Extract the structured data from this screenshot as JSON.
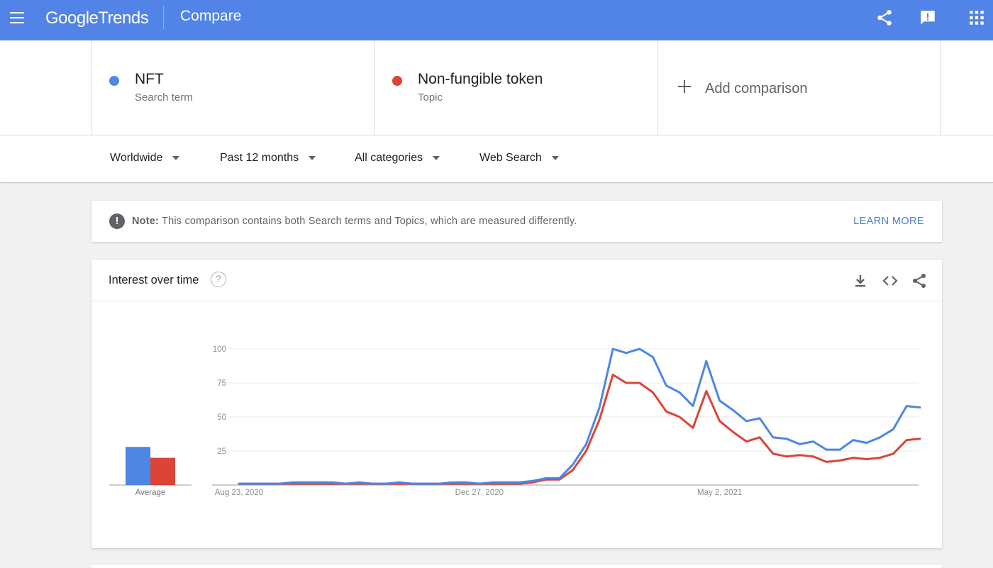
{
  "header": {
    "logo_google": "Google",
    "logo_trends": "Trends",
    "title": "Compare",
    "icons": [
      "menu-icon",
      "share-icon",
      "feedback-icon",
      "apps-icon"
    ],
    "background": "#5184e6"
  },
  "terms": [
    {
      "name": "NFT",
      "type": "Search term",
      "color": "#4e86e4"
    },
    {
      "name": "Non-fungible token",
      "type": "Topic",
      "color": "#db4437"
    }
  ],
  "add_comparison": {
    "label": "Add comparison"
  },
  "filters": {
    "region": "Worldwide",
    "time": "Past 12 months",
    "category": "All categories",
    "search_type": "Web Search"
  },
  "note": {
    "bold": "Note:",
    "text": "This comparison contains both Search terms and Topics, which are measured differently.",
    "link": "LEARN MORE"
  },
  "interest_card": {
    "title": "Interest over time",
    "help": "?",
    "icons": [
      "download-icon",
      "embed-icon",
      "share-icon"
    ]
  },
  "chart_data": {
    "type": "line",
    "yticks": [
      25,
      50,
      75,
      100
    ],
    "ylim": [
      0,
      100
    ],
    "xlabels": [
      {
        "label": "Aug 23, 2020",
        "index": 0
      },
      {
        "label": "Dec 27, 2020",
        "index": 18
      },
      {
        "label": "May 2, 2021",
        "index": 36
      }
    ],
    "average_label": "Average",
    "series": [
      {
        "name": "NFT",
        "color": "#4e86e4",
        "average": 28,
        "values": [
          1,
          1,
          1,
          1,
          2,
          2,
          2,
          2,
          1,
          2,
          1,
          1,
          2,
          1,
          1,
          1,
          2,
          2,
          1,
          2,
          2,
          2,
          3,
          5,
          5,
          15,
          30,
          57,
          100,
          97,
          100,
          94,
          73,
          68,
          58,
          91,
          62,
          55,
          47,
          49,
          35,
          34,
          30,
          32,
          26,
          26,
          33,
          31,
          35,
          41,
          58,
          57
        ]
      },
      {
        "name": "Non-fungible token",
        "color": "#db4437",
        "average": 20,
        "values": [
          1,
          1,
          1,
          1,
          1,
          1,
          1,
          1,
          1,
          1,
          1,
          1,
          1,
          1,
          1,
          1,
          1,
          1,
          1,
          1,
          1,
          1,
          2,
          4,
          4,
          11,
          25,
          48,
          81,
          75,
          75,
          68,
          54,
          50,
          42,
          69,
          47,
          39,
          32,
          35,
          23,
          21,
          22,
          21,
          17,
          18,
          20,
          19,
          20,
          23,
          33,
          34
        ]
      }
    ]
  }
}
